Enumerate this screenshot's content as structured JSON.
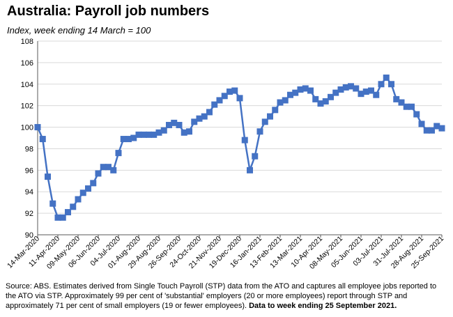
{
  "title": "Australia:  Payroll job numbers",
  "subtitle": "Index, week ending 14 March = 100",
  "source_text": "Source: ABS.  Estimates derived from Single Touch Payroll (STP) data from the ATO and captures all employee jobs reported to the ATO via STP.  Approximately 99 per cent of 'substantial' employers (20 or more employees) report through STP and approximately 71 per cent of small employers (19 or fewer employees).",
  "source_bold": "Data to week ending  25 September 2021.",
  "colors": {
    "series": "#4472C4",
    "grid": "#d9d9d9",
    "axis": "#595959"
  },
  "chart_data": {
    "type": "line",
    "title": "Australia:  Payroll job numbers",
    "subtitle": "Index, week ending 14 March = 100",
    "xlabel": "",
    "ylabel": "",
    "ylim": [
      90,
      108
    ],
    "yticks": [
      90,
      92,
      94,
      96,
      98,
      100,
      102,
      104,
      106,
      108
    ],
    "grid": true,
    "legend": "none",
    "x_tick_labels": [
      "14-Mar-2020",
      "11-Apr-2020",
      "09-May-2020",
      "06-Jun-2020",
      "04-Jul-2020",
      "01-Aug-2020",
      "29-Aug-2020",
      "26-Sep-2020",
      "24-Oct-2020",
      "21-Nov-2020",
      "19-Dec-2020",
      "16-Jan-2021",
      "13-Feb-2021",
      "13-Mar-2021",
      "10-Apr-2021",
      "08-May-2021",
      "05-Jun-2021",
      "03-Jul-2021",
      "31-Jul-2021",
      "28-Aug-2021",
      "25-Sep-2021"
    ],
    "x_start": "2020-03-14",
    "x_interval_days": 7,
    "series": [
      {
        "values": [
          100.0,
          98.9,
          95.4,
          92.9,
          91.6,
          91.6,
          92.1,
          92.6,
          93.3,
          93.9,
          94.3,
          94.8,
          95.7,
          96.3,
          96.3,
          96.0,
          97.6,
          98.9,
          98.9,
          99.0,
          99.3,
          99.3,
          99.3,
          99.3,
          99.5,
          99.7,
          100.2,
          100.4,
          100.2,
          99.5,
          99.6,
          100.5,
          100.8,
          101.0,
          101.4,
          102.1,
          102.5,
          102.9,
          103.3,
          103.4,
          102.7,
          98.8,
          96.0,
          97.3,
          99.6,
          100.5,
          101.0,
          101.6,
          102.3,
          102.5,
          103.0,
          103.2,
          103.5,
          103.6,
          103.4,
          102.6,
          102.2,
          102.4,
          102.8,
          103.2,
          103.5,
          103.7,
          103.8,
          103.6,
          103.1,
          103.3,
          103.4,
          103.0,
          104.0,
          104.6,
          104.0,
          102.6,
          102.3,
          101.9,
          101.9,
          101.2,
          100.3,
          99.7,
          99.7,
          100.1,
          99.9
        ]
      }
    ]
  }
}
